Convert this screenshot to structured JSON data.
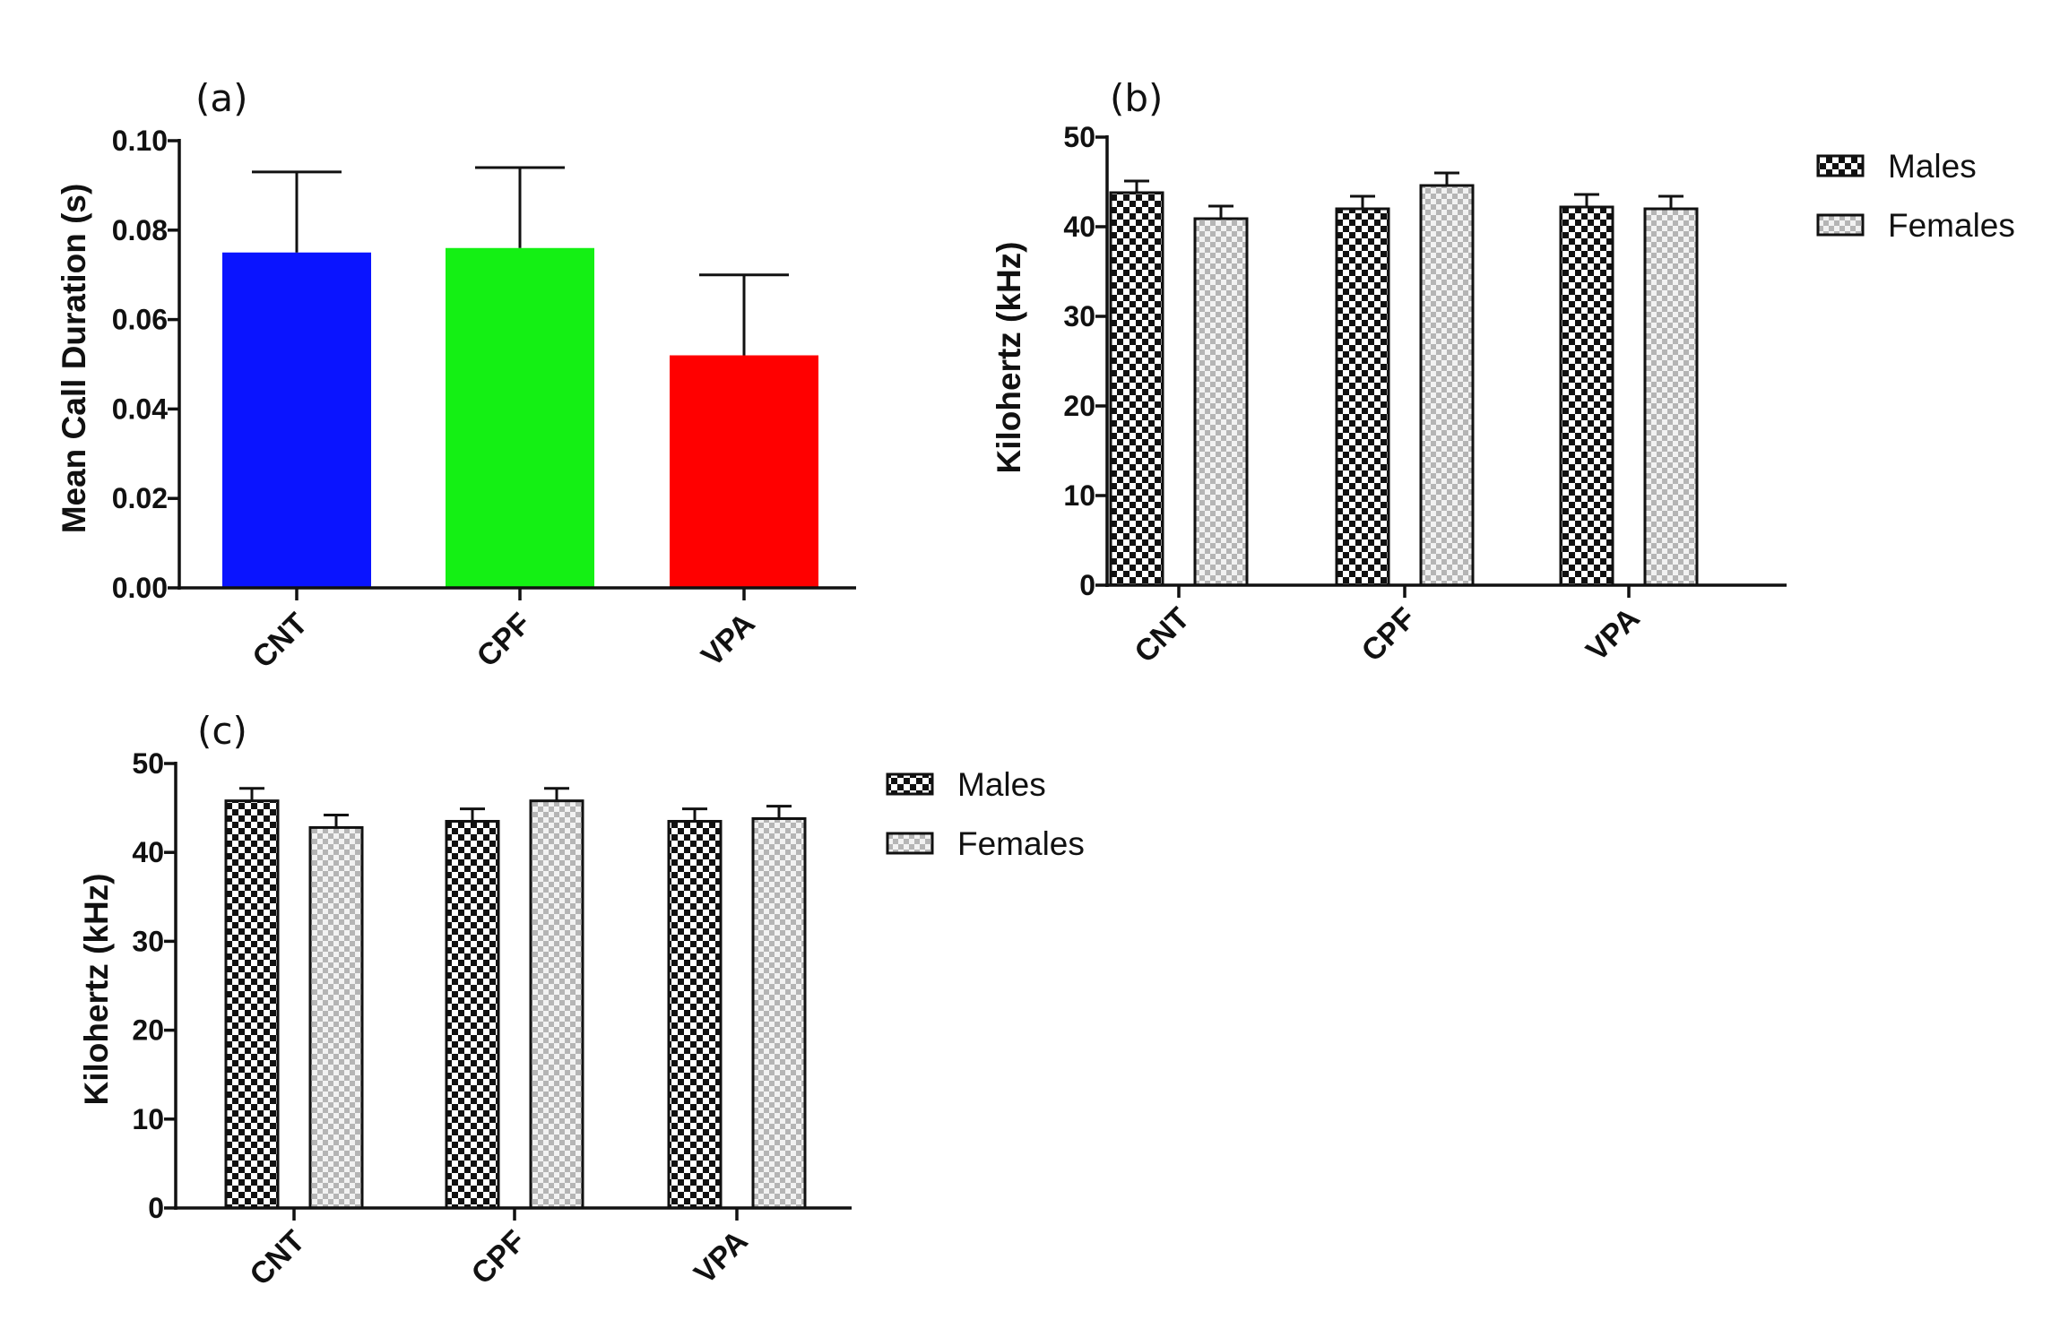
{
  "chart_data": [
    {
      "type": "bar",
      "panel_label": "(a)",
      "categories": [
        "CNT",
        "CPF",
        "VPA"
      ],
      "values": [
        0.075,
        0.076,
        0.052
      ],
      "error_upper": [
        0.093,
        0.094,
        0.07
      ],
      "colors": [
        "#0a14ff",
        "#14f014",
        "#ff0000"
      ],
      "ylabel": "Mean Call Duration (s)",
      "ylim": [
        0,
        0.1
      ],
      "yticks": [
        "0.00",
        "0.02",
        "0.04",
        "0.06",
        "0.08",
        "0.10"
      ],
      "grid": false
    },
    {
      "type": "bar",
      "panel_label": "(b)",
      "categories": [
        "CNT",
        "CPF",
        "VPA"
      ],
      "series": [
        {
          "name": "Males",
          "values": [
            43.8,
            42.0,
            42.2
          ],
          "error_upper": [
            45.1,
            43.4,
            43.6
          ],
          "pattern": "checker-dark"
        },
        {
          "name": "Females",
          "values": [
            40.9,
            44.6,
            42.0
          ],
          "error_upper": [
            42.3,
            46.0,
            43.4
          ],
          "pattern": "checker-light"
        }
      ],
      "ylabel": "Kilohertz (kHz)",
      "ylim": [
        0,
        50
      ],
      "yticks": [
        "0",
        "10",
        "20",
        "30",
        "40",
        "50"
      ],
      "legend_position": "right",
      "grid": false
    },
    {
      "type": "bar",
      "panel_label": "(c)",
      "categories": [
        "CNT",
        "CPF",
        "VPA"
      ],
      "series": [
        {
          "name": "Males",
          "values": [
            45.8,
            43.5,
            43.5
          ],
          "error_upper": [
            47.2,
            44.9,
            44.9
          ],
          "pattern": "checker-dark"
        },
        {
          "name": "Females",
          "values": [
            42.8,
            45.8,
            43.8
          ],
          "error_upper": [
            44.2,
            47.2,
            45.2
          ],
          "pattern": "checker-light"
        }
      ],
      "ylabel": "Kilohertz (kHz)",
      "ylim": [
        0,
        50
      ],
      "yticks": [
        "0",
        "10",
        "20",
        "30",
        "40",
        "50"
      ],
      "legend_position": "right",
      "grid": false
    }
  ]
}
